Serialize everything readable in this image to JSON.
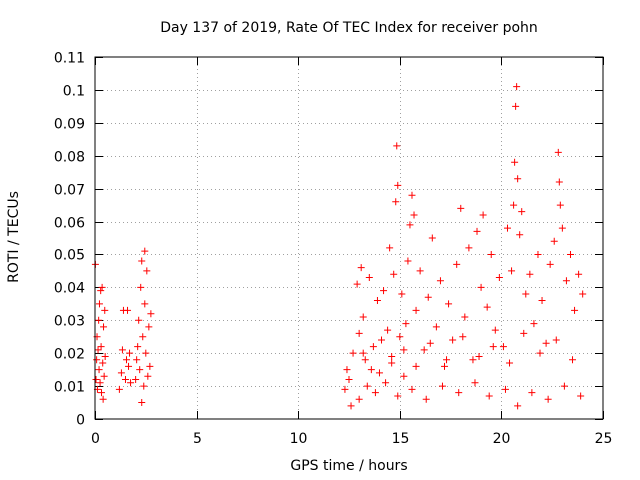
{
  "chart_data": {
    "type": "scatter",
    "title": "Day 137 of 2019, Rate Of TEC Index for receiver pohn",
    "xlabel": "GPS time / hours",
    "ylabel": "ROTI / TECUs",
    "xlim": [
      0,
      25
    ],
    "ylim": [
      0,
      0.11
    ],
    "xticks": [
      0,
      5,
      10,
      15,
      20,
      25
    ],
    "xtick_labels": [
      "0",
      "5",
      "10",
      "15",
      "20",
      "25"
    ],
    "yticks": [
      0,
      0.01,
      0.02,
      0.03,
      0.04,
      0.05,
      0.06,
      0.07,
      0.08,
      0.09,
      0.1,
      0.11
    ],
    "ytick_labels": [
      "0",
      "0.01",
      "0.02",
      "0.03",
      "0.04",
      "0.05",
      "0.06",
      "0.07",
      "0.08",
      "0.09",
      "0.1",
      "0.11"
    ],
    "grid": true,
    "marker": "+",
    "series": [
      {
        "name": "ROTI",
        "color": "#ff0000",
        "points": [
          [
            0.02,
            0.047
          ],
          [
            0.05,
            0.012
          ],
          [
            0.08,
            0.018
          ],
          [
            0.1,
            0.025
          ],
          [
            0.12,
            0.009
          ],
          [
            0.15,
            0.021
          ],
          [
            0.18,
            0.03
          ],
          [
            0.2,
            0.015
          ],
          [
            0.22,
            0.035
          ],
          [
            0.25,
            0.011
          ],
          [
            0.28,
            0.039
          ],
          [
            0.3,
            0.022
          ],
          [
            0.32,
            0.008
          ],
          [
            0.35,
            0.04
          ],
          [
            0.38,
            0.017
          ],
          [
            0.4,
            0.006
          ],
          [
            0.42,
            0.028
          ],
          [
            0.45,
            0.013
          ],
          [
            0.48,
            0.033
          ],
          [
            0.5,
            0.019
          ],
          [
            1.2,
            0.009
          ],
          [
            1.3,
            0.014
          ],
          [
            1.35,
            0.021
          ],
          [
            1.4,
            0.033
          ],
          [
            1.5,
            0.012
          ],
          [
            1.55,
            0.018
          ],
          [
            1.6,
            0.033
          ],
          [
            1.65,
            0.016
          ],
          [
            1.7,
            0.02
          ],
          [
            1.75,
            0.011
          ],
          [
            2.0,
            0.012
          ],
          [
            2.05,
            0.018
          ],
          [
            2.1,
            0.022
          ],
          [
            2.15,
            0.03
          ],
          [
            2.2,
            0.015
          ],
          [
            2.25,
            0.04
          ],
          [
            2.3,
            0.048
          ],
          [
            2.35,
            0.025
          ],
          [
            2.4,
            0.01
          ],
          [
            2.45,
            0.035
          ],
          [
            2.5,
            0.02
          ],
          [
            2.55,
            0.045
          ],
          [
            2.6,
            0.013
          ],
          [
            2.65,
            0.028
          ],
          [
            2.7,
            0.016
          ],
          [
            2.75,
            0.032
          ],
          [
            2.3,
            0.005
          ],
          [
            2.45,
            0.051
          ],
          [
            12.3,
            0.009
          ],
          [
            12.4,
            0.015
          ],
          [
            12.5,
            0.012
          ],
          [
            12.6,
            0.004
          ],
          [
            12.7,
            0.02
          ],
          [
            12.9,
            0.041
          ],
          [
            13.0,
            0.026
          ],
          [
            13.1,
            0.046
          ],
          [
            13.2,
            0.031
          ],
          [
            13.3,
            0.018
          ],
          [
            13.5,
            0.043
          ],
          [
            13.7,
            0.022
          ],
          [
            13.9,
            0.036
          ],
          [
            14.0,
            0.014
          ],
          [
            14.2,
            0.039
          ],
          [
            14.4,
            0.027
          ],
          [
            14.5,
            0.052
          ],
          [
            14.6,
            0.019
          ],
          [
            14.7,
            0.044
          ],
          [
            14.8,
            0.066
          ],
          [
            14.85,
            0.083
          ],
          [
            14.9,
            0.071
          ],
          [
            15.0,
            0.025
          ],
          [
            15.1,
            0.038
          ],
          [
            15.2,
            0.013
          ],
          [
            15.3,
            0.029
          ],
          [
            15.4,
            0.048
          ],
          [
            15.5,
            0.059
          ],
          [
            15.6,
            0.068
          ],
          [
            15.7,
            0.062
          ],
          [
            15.8,
            0.033
          ],
          [
            16.0,
            0.045
          ],
          [
            16.2,
            0.021
          ],
          [
            16.4,
            0.037
          ],
          [
            16.6,
            0.055
          ],
          [
            16.8,
            0.028
          ],
          [
            17.0,
            0.042
          ],
          [
            17.2,
            0.016
          ],
          [
            17.4,
            0.035
          ],
          [
            17.6,
            0.024
          ],
          [
            17.8,
            0.047
          ],
          [
            18.0,
            0.064
          ],
          [
            18.2,
            0.031
          ],
          [
            18.4,
            0.052
          ],
          [
            18.6,
            0.018
          ],
          [
            18.8,
            0.057
          ],
          [
            19.0,
            0.04
          ],
          [
            19.1,
            0.062
          ],
          [
            19.3,
            0.034
          ],
          [
            19.5,
            0.05
          ],
          [
            19.7,
            0.027
          ],
          [
            19.9,
            0.043
          ],
          [
            20.1,
            0.022
          ],
          [
            20.3,
            0.058
          ],
          [
            20.5,
            0.045
          ],
          [
            20.6,
            0.065
          ],
          [
            20.65,
            0.078
          ],
          [
            20.7,
            0.095
          ],
          [
            20.75,
            0.101
          ],
          [
            20.8,
            0.073
          ],
          [
            20.9,
            0.056
          ],
          [
            21.0,
            0.063
          ],
          [
            21.2,
            0.038
          ],
          [
            21.4,
            0.044
          ],
          [
            21.6,
            0.029
          ],
          [
            21.8,
            0.05
          ],
          [
            22.0,
            0.036
          ],
          [
            22.2,
            0.023
          ],
          [
            22.4,
            0.047
          ],
          [
            22.6,
            0.054
          ],
          [
            22.8,
            0.081
          ],
          [
            22.85,
            0.072
          ],
          [
            22.9,
            0.065
          ],
          [
            23.0,
            0.058
          ],
          [
            23.2,
            0.042
          ],
          [
            23.4,
            0.05
          ],
          [
            23.6,
            0.033
          ],
          [
            23.8,
            0.044
          ],
          [
            24.0,
            0.038
          ],
          [
            13.0,
            0.006
          ],
          [
            13.4,
            0.01
          ],
          [
            13.8,
            0.008
          ],
          [
            14.3,
            0.011
          ],
          [
            14.9,
            0.007
          ],
          [
            15.6,
            0.009
          ],
          [
            16.3,
            0.006
          ],
          [
            17.1,
            0.01
          ],
          [
            17.9,
            0.008
          ],
          [
            18.7,
            0.011
          ],
          [
            19.4,
            0.007
          ],
          [
            20.2,
            0.009
          ],
          [
            20.8,
            0.004
          ],
          [
            21.5,
            0.008
          ],
          [
            22.3,
            0.006
          ],
          [
            23.1,
            0.01
          ],
          [
            23.9,
            0.007
          ],
          [
            13.2,
            0.02
          ],
          [
            13.6,
            0.015
          ],
          [
            14.1,
            0.024
          ],
          [
            14.6,
            0.017
          ],
          [
            15.2,
            0.021
          ],
          [
            15.8,
            0.016
          ],
          [
            16.5,
            0.023
          ],
          [
            17.3,
            0.018
          ],
          [
            18.1,
            0.025
          ],
          [
            18.9,
            0.019
          ],
          [
            19.6,
            0.022
          ],
          [
            20.4,
            0.017
          ],
          [
            21.1,
            0.026
          ],
          [
            21.9,
            0.02
          ],
          [
            22.7,
            0.024
          ],
          [
            23.5,
            0.018
          ]
        ]
      }
    ]
  }
}
